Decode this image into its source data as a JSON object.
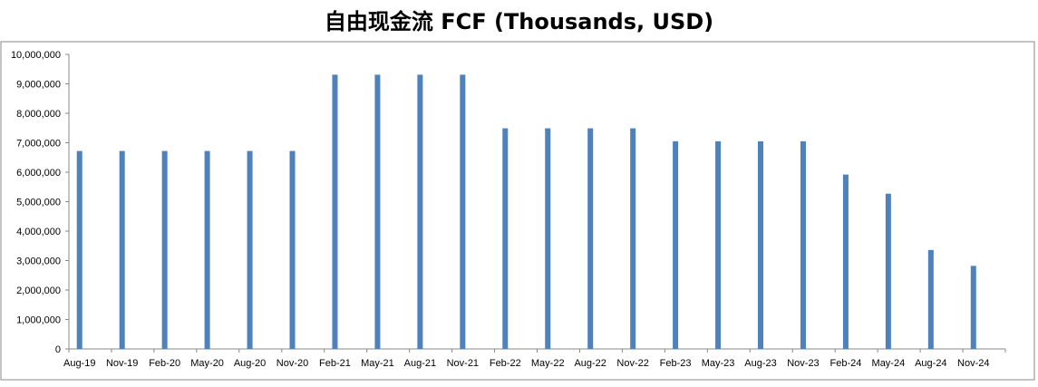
{
  "chart_data": {
    "type": "bar",
    "title": "自由现金流 FCF (Thousands, USD)",
    "xlabel": "",
    "ylabel": "",
    "ylim": [
      0,
      10000000
    ],
    "y_ticks": [
      0,
      1000000,
      2000000,
      3000000,
      4000000,
      5000000,
      6000000,
      7000000,
      8000000,
      9000000,
      10000000
    ],
    "y_tick_labels": [
      "0",
      "1,000,000",
      "2,000,000",
      "3,000,000",
      "4,000,000",
      "5,000,000",
      "6,000,000",
      "7,000,000",
      "8,000,000",
      "9,000,000",
      "10,000,000"
    ],
    "categories": [
      "Aug-19",
      "Nov-19",
      "Feb-20",
      "May-20",
      "Aug-20",
      "Nov-20",
      "Feb-21",
      "May-21",
      "Aug-21",
      "Nov-21",
      "Feb-22",
      "May-22",
      "Aug-22",
      "Nov-22",
      "Feb-23",
      "May-23",
      "Aug-23",
      "Nov-23",
      "Feb-24",
      "May-24",
      "Aug-24",
      "Nov-24"
    ],
    "values": [
      6720000,
      6720000,
      6720000,
      6720000,
      6720000,
      6720000,
      9310000,
      9310000,
      9310000,
      9310000,
      7490000,
      7490000,
      7490000,
      7490000,
      7050000,
      7050000,
      7050000,
      7050000,
      5920000,
      5270000,
      3360000,
      2820000
    ],
    "bar_color": "#4F81BD",
    "grid": false,
    "legend": "none"
  }
}
